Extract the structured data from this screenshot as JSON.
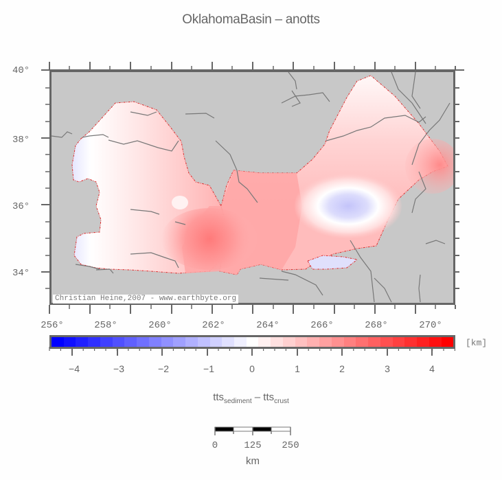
{
  "title": "OklahomaBasin – anotts",
  "map": {
    "background_color": "#c8c8c8",
    "frame_color": "#666666",
    "boundary_color": "#e03030",
    "credit": "Christian Heine,2007 - www.earthbyte.org",
    "y_axis": {
      "labels": [
        "40°",
        "38°",
        "36°",
        "34°"
      ],
      "range": [
        33,
        40
      ]
    },
    "x_axis": {
      "labels": [
        "256°",
        "258°",
        "260°",
        "262°",
        "264°",
        "266°",
        "268°",
        "270°"
      ],
      "range": [
        256,
        271
      ]
    }
  },
  "colorbar": {
    "unit": "[km]",
    "min": -4.7,
    "max": 4.7,
    "tick_labels": [
      "−4",
      "−3",
      "−2",
      "−1",
      "0",
      "1",
      "2",
      "3",
      "4"
    ],
    "colors": [
      "#0000ff",
      "#1010ff",
      "#2020ff",
      "#3030ff",
      "#4040ff",
      "#5050ff",
      "#6060ff",
      "#7070ff",
      "#8080ff",
      "#9090ff",
      "#a0a0ff",
      "#b0b0ff",
      "#c0c0ff",
      "#d0d0ff",
      "#e0e0ff",
      "#f0f0ff",
      "#ffffff",
      "#fff0f0",
      "#ffe0e0",
      "#ffd0d0",
      "#ffc0c0",
      "#ffb0b0",
      "#ffa0a0",
      "#ff9090",
      "#ff8080",
      "#ff7070",
      "#ff6060",
      "#ff5050",
      "#ff4040",
      "#ff3030",
      "#ff2020",
      "#ff1010",
      "#ff0000"
    ]
  },
  "formula": {
    "a": "tts",
    "a_sub": "sediment",
    "op": " – ",
    "b": "tts",
    "b_sub": "crust"
  },
  "scalebar": {
    "labels": [
      "0",
      "125",
      "250"
    ],
    "unit": "km"
  }
}
